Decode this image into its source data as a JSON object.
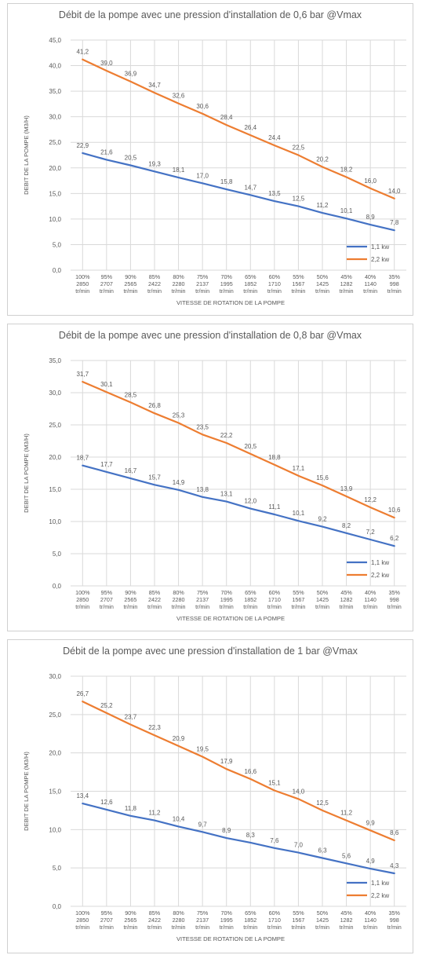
{
  "colors": {
    "series_1": "#4472C4",
    "series_2": "#ED7D31",
    "grid": "#d9d9d9",
    "text": "#595959"
  },
  "chart_data": [
    {
      "type": "line",
      "title": "Débit de la pompe avec une pression d'installation de 0,6 bar @Vmax",
      "xlabel": "VITESSE DE ROTATION DE LA POMPE",
      "ylabel": "DEBIT DE LA POMPE (M3/H)",
      "ylim": [
        0,
        45
      ],
      "yticks": [
        "0,0",
        "5,0",
        "10,0",
        "15,0",
        "20,0",
        "25,0",
        "30,0",
        "35,0",
        "40,0",
        "45,0"
      ],
      "categories": [
        [
          "100%",
          "2850",
          "tr/min"
        ],
        [
          "95%",
          "2707",
          "tr/min"
        ],
        [
          "90%",
          "2565",
          "tr/min"
        ],
        [
          "85%",
          "2422",
          "tr/min"
        ],
        [
          "80%",
          "2280",
          "tr/min"
        ],
        [
          "75%",
          "2137",
          "tr/min"
        ],
        [
          "70%",
          "1995",
          "tr/min"
        ],
        [
          "65%",
          "1852",
          "tr/min"
        ],
        [
          "60%",
          "1710",
          "tr/min"
        ],
        [
          "55%",
          "1567",
          "tr/min"
        ],
        [
          "50%",
          "1425",
          "tr/min"
        ],
        [
          "45%",
          "1282",
          "tr/min"
        ],
        [
          "40%",
          "1140",
          "tr/min"
        ],
        [
          "35%",
          "998",
          "tr/min"
        ]
      ],
      "legend": "bottom-right",
      "grid": true,
      "series": [
        {
          "name": "1,1 kw",
          "values": [
            22.9,
            21.6,
            20.5,
            19.3,
            18.1,
            17.0,
            15.8,
            14.7,
            13.5,
            12.5,
            11.2,
            10.1,
            8.9,
            7.8
          ],
          "labels": [
            "22,9",
            "21,6",
            "20,5",
            "19,3",
            "18,1",
            "17,0",
            "15,8",
            "14,7",
            "13,5",
            "12,5",
            "11,2",
            "10,1",
            "8,9",
            "7,8"
          ]
        },
        {
          "name": "2,2 kw",
          "values": [
            41.2,
            39.0,
            36.9,
            34.7,
            32.6,
            30.6,
            28.4,
            26.4,
            24.4,
            22.5,
            20.2,
            18.2,
            16.0,
            14.0
          ],
          "labels": [
            "41,2",
            "39,0",
            "36,9",
            "34,7",
            "32,6",
            "30,6",
            "28,4",
            "26,4",
            "24,4",
            "22,5",
            "20,2",
            "18,2",
            "16,0",
            "14,0"
          ]
        }
      ]
    },
    {
      "type": "line",
      "title": "Débit de la pompe avec une pression d'installation de 0,8 bar @Vmax",
      "xlabel": "VITESSE DE ROTATION DE LA POMPE",
      "ylabel": "DEBIT DE LA POMPE (M3/H)",
      "ylim": [
        0,
        35
      ],
      "yticks": [
        "0,0",
        "5,0",
        "10,0",
        "15,0",
        "20,0",
        "25,0",
        "30,0",
        "35,0"
      ],
      "categories": [
        [
          "100%",
          "2850",
          "tr/min"
        ],
        [
          "95%",
          "2707",
          "tr/min"
        ],
        [
          "90%",
          "2565",
          "tr/min"
        ],
        [
          "85%",
          "2422",
          "tr/min"
        ],
        [
          "80%",
          "2280",
          "tr/min"
        ],
        [
          "75%",
          "2137",
          "tr/min"
        ],
        [
          "70%",
          "1995",
          "tr/min"
        ],
        [
          "65%",
          "1852",
          "tr/min"
        ],
        [
          "60%",
          "1710",
          "tr/min"
        ],
        [
          "55%",
          "1567",
          "tr/min"
        ],
        [
          "50%",
          "1425",
          "tr/min"
        ],
        [
          "45%",
          "1282",
          "tr/min"
        ],
        [
          "40%",
          "1140",
          "tr/min"
        ],
        [
          "35%",
          "998",
          "tr/min"
        ]
      ],
      "legend": "bottom-right",
      "grid": true,
      "series": [
        {
          "name": "1,1 kw",
          "values": [
            18.7,
            17.7,
            16.7,
            15.7,
            14.9,
            13.8,
            13.1,
            12.0,
            11.1,
            10.1,
            9.2,
            8.2,
            7.2,
            6.2
          ],
          "labels": [
            "18,7",
            "17,7",
            "16,7",
            "15,7",
            "14,9",
            "13,8",
            "13,1",
            "12,0",
            "11,1",
            "10,1",
            "9,2",
            "8,2",
            "7,2",
            "6,2"
          ]
        },
        {
          "name": "2,2 kw",
          "values": [
            31.7,
            30.1,
            28.5,
            26.8,
            25.3,
            23.5,
            22.2,
            20.5,
            18.8,
            17.1,
            15.6,
            13.9,
            12.2,
            10.6
          ],
          "labels": [
            "31,7",
            "30,1",
            "28,5",
            "26,8",
            "25,3",
            "23,5",
            "22,2",
            "20,5",
            "18,8",
            "17,1",
            "15,6",
            "13,9",
            "12,2",
            "10,6"
          ]
        }
      ]
    },
    {
      "type": "line",
      "title": "Débit de la pompe avec une pression d'installation de 1 bar @Vmax",
      "xlabel": "VITESSE DE ROTATION DE LA POMPE",
      "ylabel": "DEBIT DE LA POMPE (M3/H)",
      "ylim": [
        0,
        30
      ],
      "yticks": [
        "0,0",
        "5,0",
        "10,0",
        "15,0",
        "20,0",
        "25,0",
        "30,0"
      ],
      "categories": [
        [
          "100%",
          "2850",
          "tr/min"
        ],
        [
          "95%",
          "2707",
          "tr/min"
        ],
        [
          "90%",
          "2565",
          "tr/min"
        ],
        [
          "85%",
          "2422",
          "tr/min"
        ],
        [
          "80%",
          "2280",
          "tr/min"
        ],
        [
          "75%",
          "2137",
          "tr/min"
        ],
        [
          "70%",
          "1995",
          "tr/min"
        ],
        [
          "65%",
          "1852",
          "tr/min"
        ],
        [
          "60%",
          "1710",
          "tr/min"
        ],
        [
          "55%",
          "1567",
          "tr/min"
        ],
        [
          "50%",
          "1425",
          "tr/min"
        ],
        [
          "45%",
          "1282",
          "tr/min"
        ],
        [
          "40%",
          "1140",
          "tr/min"
        ],
        [
          "35%",
          "998",
          "tr/min"
        ]
      ],
      "legend": "bottom-right",
      "grid": true,
      "series": [
        {
          "name": "1,1 kw",
          "values": [
            13.4,
            12.6,
            11.8,
            11.2,
            10.4,
            9.7,
            8.9,
            8.3,
            7.6,
            7.0,
            6.3,
            5.6,
            4.9,
            4.3
          ],
          "labels": [
            "13,4",
            "12,6",
            "11,8",
            "11,2",
            "10,4",
            "9,7",
            "8,9",
            "8,3",
            "7,6",
            "7,0",
            "6,3",
            "5,6",
            "4,9",
            "4,3"
          ]
        },
        {
          "name": "2,2 kw",
          "values": [
            26.7,
            25.2,
            23.7,
            22.3,
            20.9,
            19.5,
            17.9,
            16.6,
            15.1,
            14.0,
            12.5,
            11.2,
            9.9,
            8.6
          ],
          "labels": [
            "26,7",
            "25,2",
            "23,7",
            "22,3",
            "20,9",
            "19,5",
            "17,9",
            "16,6",
            "15,1",
            "14,0",
            "12,5",
            "11,2",
            "9,9",
            "8,6"
          ]
        }
      ]
    }
  ]
}
